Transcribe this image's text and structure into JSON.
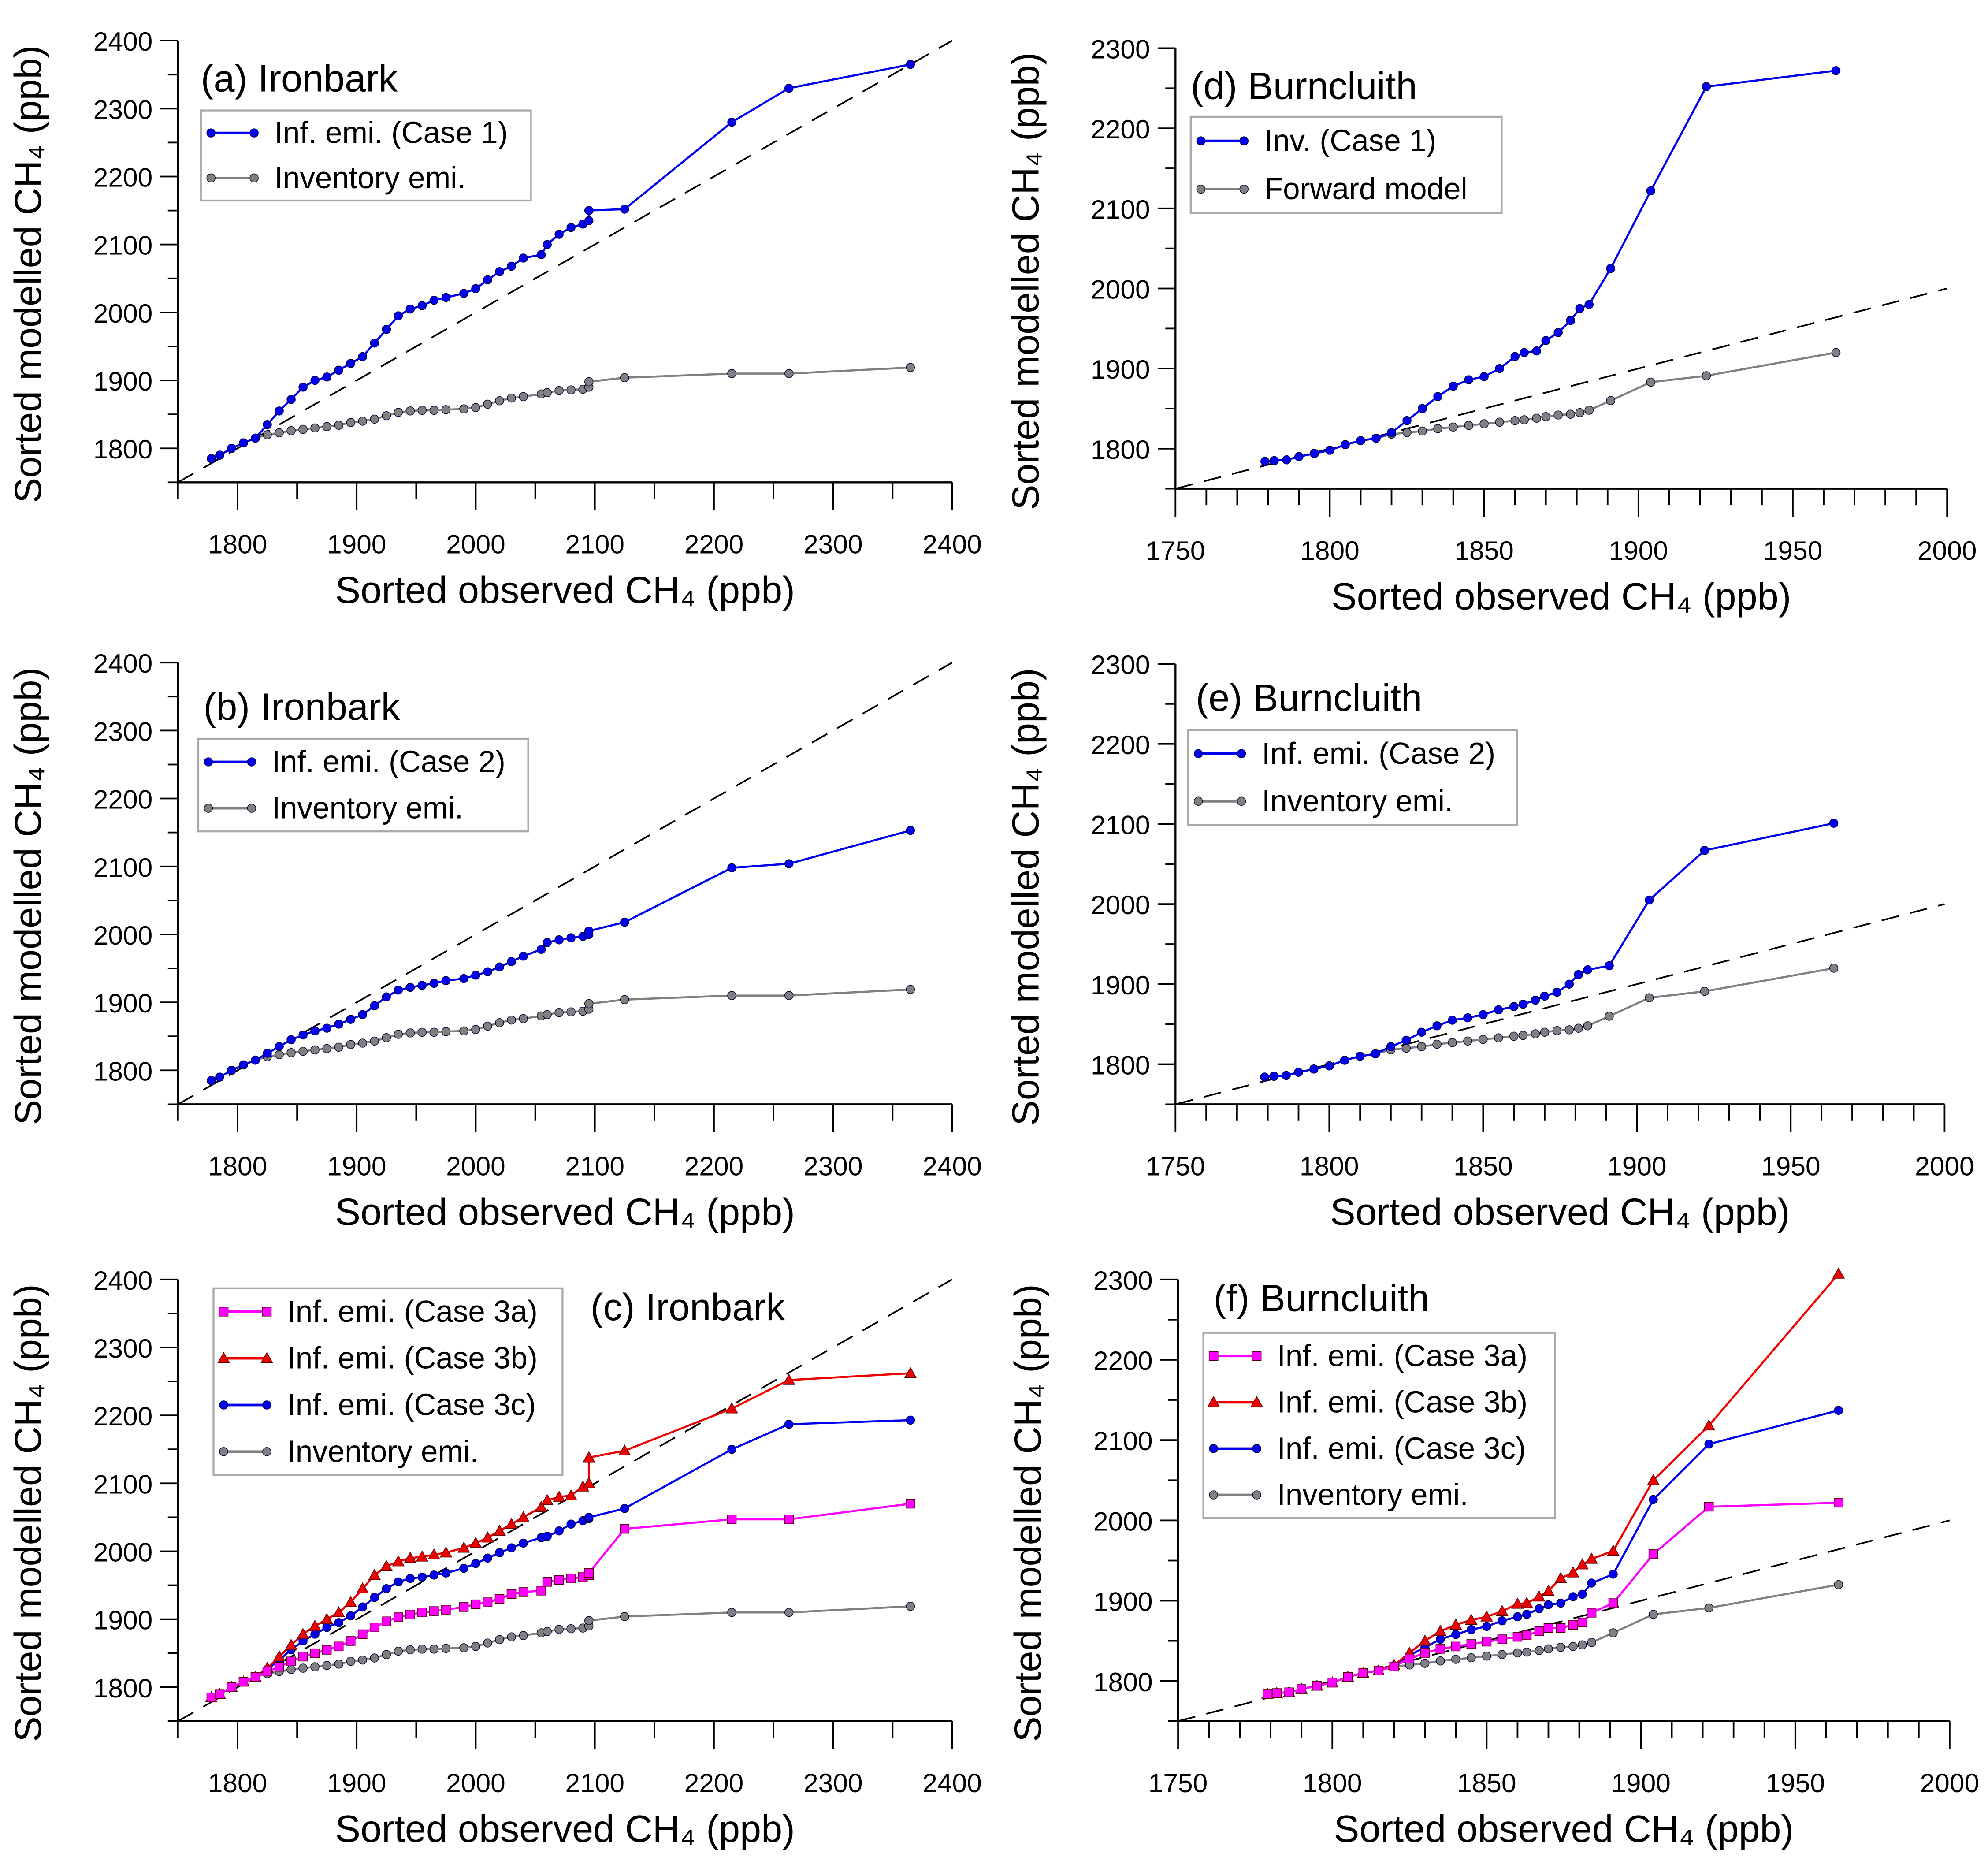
{
  "chart_data": [
    {
      "type": "line",
      "title": "(a) Ironbark",
      "xlabel": "Sorted observed CH₄ (ppb)",
      "ylabel": "Sorted modelled CH₄ (ppb)",
      "xlim": [
        1750,
        2400
      ],
      "ylim": [
        1750,
        2400
      ],
      "xticks": [
        1800,
        1900,
        2000,
        2100,
        2200,
        2300,
        2400
      ],
      "yticks": [
        1800,
        1900,
        2000,
        2100,
        2200,
        2300,
        2400
      ],
      "reference_line": "1:1 dashed",
      "legend": "top-left",
      "x": [
        1778,
        1785,
        1795,
        1805,
        1815,
        1825,
        1835,
        1845,
        1855,
        1865,
        1875,
        1885,
        1895,
        1905,
        1915,
        1925,
        1935,
        1945,
        1955,
        1965,
        1975,
        1990,
        2000,
        2010,
        2020,
        2030,
        2040,
        2055,
        2060,
        2070,
        2080,
        2090,
        2095,
        2095,
        2125,
        2215,
        2263,
        2365
      ],
      "series": [
        {
          "name": "Inf. emi. (Case 1)",
          "color": "#0000ee",
          "marker": "circle",
          "y": [
            1785,
            1790,
            1800,
            1808,
            1815,
            1835,
            1855,
            1872,
            1890,
            1900,
            1905,
            1915,
            1925,
            1935,
            1955,
            1975,
            1995,
            2005,
            2010,
            2018,
            2022,
            2028,
            2035,
            2048,
            2060,
            2068,
            2080,
            2085,
            2100,
            2115,
            2125,
            2130,
            2135,
            2150,
            2152,
            2280,
            2330,
            2365
          ]
        },
        {
          "name": "Inventory emi.",
          "color": "#808080",
          "marker": "circle",
          "y": [
            1785,
            1790,
            1800,
            1808,
            1815,
            1820,
            1823,
            1826,
            1828,
            1830,
            1832,
            1834,
            1838,
            1840,
            1843,
            1848,
            1853,
            1855,
            1856,
            1856,
            1857,
            1858,
            1860,
            1865,
            1870,
            1874,
            1876,
            1880,
            1882,
            1885,
            1886,
            1887,
            1890,
            1898,
            1904,
            1910,
            1910,
            1919
          ]
        }
      ]
    },
    {
      "type": "line",
      "title": "(b) Ironbark",
      "xlabel": "Sorted observed CH₄ (ppb)",
      "ylabel": "Sorted modelled CH₄ (ppb)",
      "xlim": [
        1750,
        2400
      ],
      "ylim": [
        1750,
        2400
      ],
      "xticks": [
        1800,
        1900,
        2000,
        2100,
        2200,
        2300,
        2400
      ],
      "yticks": [
        1800,
        1900,
        2000,
        2100,
        2200,
        2300,
        2400
      ],
      "reference_line": "1:1 dashed",
      "legend": "top-left",
      "x": [
        1778,
        1785,
        1795,
        1805,
        1815,
        1825,
        1835,
        1845,
        1855,
        1865,
        1875,
        1885,
        1895,
        1905,
        1915,
        1925,
        1935,
        1945,
        1955,
        1965,
        1975,
        1990,
        2000,
        2010,
        2020,
        2030,
        2040,
        2055,
        2060,
        2070,
        2080,
        2090,
        2095,
        2095,
        2125,
        2215,
        2263,
        2365
      ],
      "series": [
        {
          "name": "Inf. emi. (Case 2)",
          "color": "#0000ee",
          "marker": "circle",
          "y": [
            1785,
            1790,
            1800,
            1808,
            1815,
            1825,
            1835,
            1845,
            1852,
            1858,
            1862,
            1868,
            1875,
            1882,
            1895,
            1908,
            1918,
            1922,
            1925,
            1928,
            1932,
            1935,
            1940,
            1945,
            1952,
            1960,
            1968,
            1978,
            1988,
            1992,
            1995,
            1997,
            2000,
            2005,
            2018,
            2098,
            2104,
            2153
          ]
        },
        {
          "name": "Inventory emi.",
          "color": "#808080",
          "marker": "circle",
          "y": [
            1785,
            1790,
            1800,
            1808,
            1815,
            1820,
            1823,
            1826,
            1828,
            1830,
            1832,
            1834,
            1838,
            1840,
            1843,
            1848,
            1853,
            1855,
            1856,
            1856,
            1857,
            1858,
            1860,
            1865,
            1870,
            1874,
            1876,
            1880,
            1882,
            1885,
            1886,
            1887,
            1890,
            1898,
            1904,
            1910,
            1910,
            1919
          ]
        }
      ]
    },
    {
      "type": "line",
      "title": "(c) Ironbark",
      "xlabel": "Sorted observed CH₄ (ppb)",
      "ylabel": "Sorted modelled CH₄ (ppb)",
      "xlim": [
        1750,
        2400
      ],
      "ylim": [
        1750,
        2400
      ],
      "xticks": [
        1800,
        1900,
        2000,
        2100,
        2200,
        2300,
        2400
      ],
      "yticks": [
        1800,
        1900,
        2000,
        2100,
        2200,
        2300,
        2400
      ],
      "reference_line": "1:1 dashed",
      "legend": "top-left",
      "x": [
        1778,
        1785,
        1795,
        1805,
        1815,
        1825,
        1835,
        1845,
        1855,
        1865,
        1875,
        1885,
        1895,
        1905,
        1915,
        1925,
        1935,
        1945,
        1955,
        1965,
        1975,
        1990,
        2000,
        2010,
        2020,
        2030,
        2040,
        2055,
        2060,
        2070,
        2080,
        2090,
        2095,
        2095,
        2125,
        2215,
        2263,
        2365
      ],
      "series": [
        {
          "name": "Inf. emi. (Case 3a)",
          "color": "#ff00ff",
          "marker": "square",
          "y": [
            1785,
            1790,
            1800,
            1808,
            1815,
            1823,
            1830,
            1838,
            1845,
            1850,
            1855,
            1860,
            1868,
            1878,
            1888,
            1897,
            1903,
            1907,
            1910,
            1912,
            1914,
            1918,
            1922,
            1925,
            1930,
            1937,
            1940,
            1942,
            1955,
            1958,
            1960,
            1962,
            1965,
            1968,
            2033,
            2047,
            2047,
            2070
          ]
        },
        {
          "name": "Inf. emi. (Case 3b)",
          "color": "#ee0000",
          "marker": "triangle",
          "y": [
            1785,
            1790,
            1800,
            1808,
            1815,
            1828,
            1845,
            1862,
            1878,
            1890,
            1900,
            1910,
            1925,
            1945,
            1965,
            1978,
            1985,
            1990,
            1992,
            1995,
            1998,
            2005,
            2012,
            2020,
            2030,
            2040,
            2050,
            2065,
            2075,
            2080,
            2082,
            2095,
            2100,
            2138,
            2148,
            2210,
            2252,
            2262
          ]
        },
        {
          "name": "Inf. emi. (Case 3c)",
          "color": "#0000ee",
          "marker": "circle",
          "y": [
            1785,
            1790,
            1800,
            1808,
            1815,
            1826,
            1840,
            1855,
            1868,
            1878,
            1888,
            1895,
            1905,
            1918,
            1932,
            1945,
            1955,
            1960,
            1962,
            1965,
            1968,
            1975,
            1982,
            1990,
            1998,
            2005,
            2012,
            2020,
            2022,
            2030,
            2040,
            2045,
            2048,
            2050,
            2063,
            2150,
            2187,
            2193
          ]
        },
        {
          "name": "Inventory emi.",
          "color": "#808080",
          "marker": "circle",
          "y": [
            1785,
            1790,
            1800,
            1808,
            1815,
            1820,
            1823,
            1826,
            1828,
            1830,
            1832,
            1834,
            1838,
            1840,
            1843,
            1848,
            1853,
            1855,
            1856,
            1856,
            1857,
            1858,
            1860,
            1865,
            1870,
            1874,
            1876,
            1880,
            1882,
            1885,
            1886,
            1887,
            1890,
            1898,
            1904,
            1910,
            1910,
            1919
          ]
        }
      ]
    },
    {
      "type": "line",
      "title": "(d) Burncluith",
      "xlabel": "Sorted observed CH₄ (ppb)",
      "ylabel": "Sorted modelled CH₄ (ppb)",
      "xlim": [
        1750,
        2000
      ],
      "ylim": [
        1750,
        2300
      ],
      "xticks": [
        1750,
        1800,
        1850,
        1900,
        1950,
        2000
      ],
      "yticks": [
        1800,
        1900,
        2000,
        2100,
        2200,
        2300
      ],
      "reference_line": "1:1 dashed",
      "legend": "top-left",
      "x": [
        1779,
        1782,
        1786,
        1790,
        1795,
        1800,
        1805,
        1810,
        1815,
        1820,
        1825,
        1830,
        1835,
        1840,
        1845,
        1850,
        1855,
        1860,
        1863,
        1867,
        1870,
        1874,
        1878,
        1881,
        1884,
        1891,
        1904,
        1922,
        1964
      ],
      "series": [
        {
          "name": "Inv. (Case 1)",
          "color": "#0000ee",
          "marker": "circle",
          "y": [
            1784,
            1785,
            1786,
            1790,
            1794,
            1798,
            1805,
            1810,
            1813,
            1820,
            1835,
            1850,
            1865,
            1878,
            1886,
            1890,
            1900,
            1915,
            1920,
            1922,
            1935,
            1945,
            1960,
            1975,
            1980,
            2025,
            2122,
            2252,
            2272
          ]
        },
        {
          "name": "Forward model",
          "color": "#808080",
          "marker": "circle",
          "y": [
            1784,
            1785,
            1786,
            1790,
            1794,
            1798,
            1805,
            1810,
            1813,
            1818,
            1820,
            1822,
            1825,
            1827,
            1829,
            1831,
            1833,
            1835,
            1836,
            1838,
            1840,
            1842,
            1843,
            1845,
            1848,
            1860,
            1883,
            1891,
            1920
          ]
        }
      ]
    },
    {
      "type": "line",
      "title": "(e) Burncluith",
      "xlabel": "Sorted observed CH₄ (ppb)",
      "ylabel": "Sorted modelled CH₄ (ppb)",
      "xlim": [
        1750,
        2000
      ],
      "ylim": [
        1750,
        2300
      ],
      "xticks": [
        1750,
        1800,
        1850,
        1900,
        1950,
        2000
      ],
      "yticks": [
        1800,
        1900,
        2000,
        2100,
        2200,
        2300
      ],
      "reference_line": "1:1 dashed",
      "legend": "top-left",
      "x": [
        1779,
        1782,
        1786,
        1790,
        1795,
        1800,
        1805,
        1810,
        1815,
        1820,
        1825,
        1830,
        1835,
        1840,
        1845,
        1850,
        1855,
        1860,
        1863,
        1867,
        1870,
        1874,
        1878,
        1881,
        1884,
        1891,
        1904,
        1922,
        1964
      ],
      "series": [
        {
          "name": "Inf. emi. (Case 2)",
          "color": "#0000ee",
          "marker": "circle",
          "y": [
            1784,
            1785,
            1786,
            1790,
            1794,
            1798,
            1805,
            1810,
            1813,
            1822,
            1830,
            1840,
            1848,
            1855,
            1858,
            1862,
            1868,
            1872,
            1875,
            1880,
            1885,
            1890,
            1900,
            1912,
            1918,
            1923,
            2005,
            2067,
            2101
          ]
        },
        {
          "name": "Inventory emi.",
          "color": "#808080",
          "marker": "circle",
          "y": [
            1784,
            1785,
            1786,
            1790,
            1794,
            1798,
            1805,
            1810,
            1813,
            1818,
            1820,
            1822,
            1825,
            1827,
            1829,
            1831,
            1833,
            1835,
            1836,
            1838,
            1840,
            1842,
            1843,
            1845,
            1848,
            1860,
            1883,
            1891,
            1920
          ]
        }
      ]
    },
    {
      "type": "line",
      "title": "(f) Burncluith",
      "xlabel": "Sorted observed CH₄ (ppb)",
      "ylabel": "Sorted modelled CH₄ (ppb)",
      "xlim": [
        1750,
        2000
      ],
      "ylim": [
        1750,
        2300
      ],
      "xticks": [
        1750,
        1800,
        1850,
        1900,
        1950,
        2000
      ],
      "yticks": [
        1800,
        1900,
        2000,
        2100,
        2200,
        2300
      ],
      "reference_line": "1:1 dashed",
      "legend": "top-left",
      "x": [
        1779,
        1782,
        1786,
        1790,
        1795,
        1800,
        1805,
        1810,
        1815,
        1820,
        1825,
        1830,
        1835,
        1840,
        1845,
        1850,
        1855,
        1860,
        1863,
        1867,
        1870,
        1874,
        1878,
        1881,
        1884,
        1891,
        1904,
        1922,
        1964
      ],
      "series": [
        {
          "name": "Inf. emi. (Case 3a)",
          "color": "#ff00ff",
          "marker": "square",
          "y": [
            1784,
            1785,
            1786,
            1790,
            1794,
            1798,
            1805,
            1810,
            1813,
            1818,
            1828,
            1835,
            1840,
            1843,
            1846,
            1849,
            1852,
            1855,
            1857,
            1862,
            1866,
            1866,
            1870,
            1873,
            1885,
            1897,
            1958,
            2017,
            2022
          ]
        },
        {
          "name": "Inf. emi. (Case 3b)",
          "color": "#ee0000",
          "marker": "triangle",
          "y": [
            1784,
            1785,
            1786,
            1790,
            1794,
            1798,
            1805,
            1810,
            1813,
            1820,
            1835,
            1850,
            1862,
            1870,
            1876,
            1880,
            1887,
            1896,
            1897,
            1905,
            1912,
            1928,
            1935,
            1945,
            1952,
            1962,
            2050,
            2118,
            2307
          ]
        },
        {
          "name": "Inf. emi. (Case 3c)",
          "color": "#0000ee",
          "marker": "circle",
          "y": [
            1784,
            1785,
            1786,
            1790,
            1794,
            1798,
            1805,
            1810,
            1813,
            1819,
            1832,
            1842,
            1852,
            1858,
            1864,
            1868,
            1875,
            1880,
            1883,
            1890,
            1895,
            1897,
            1905,
            1908,
            1922,
            1933,
            2026,
            2095,
            2137
          ]
        },
        {
          "name": "Inventory emi.",
          "color": "#808080",
          "marker": "circle",
          "y": [
            1784,
            1785,
            1786,
            1790,
            1794,
            1798,
            1805,
            1810,
            1813,
            1818,
            1820,
            1822,
            1825,
            1827,
            1829,
            1831,
            1833,
            1835,
            1836,
            1838,
            1840,
            1842,
            1843,
            1845,
            1848,
            1860,
            1883,
            1891,
            1920
          ]
        }
      ]
    }
  ]
}
